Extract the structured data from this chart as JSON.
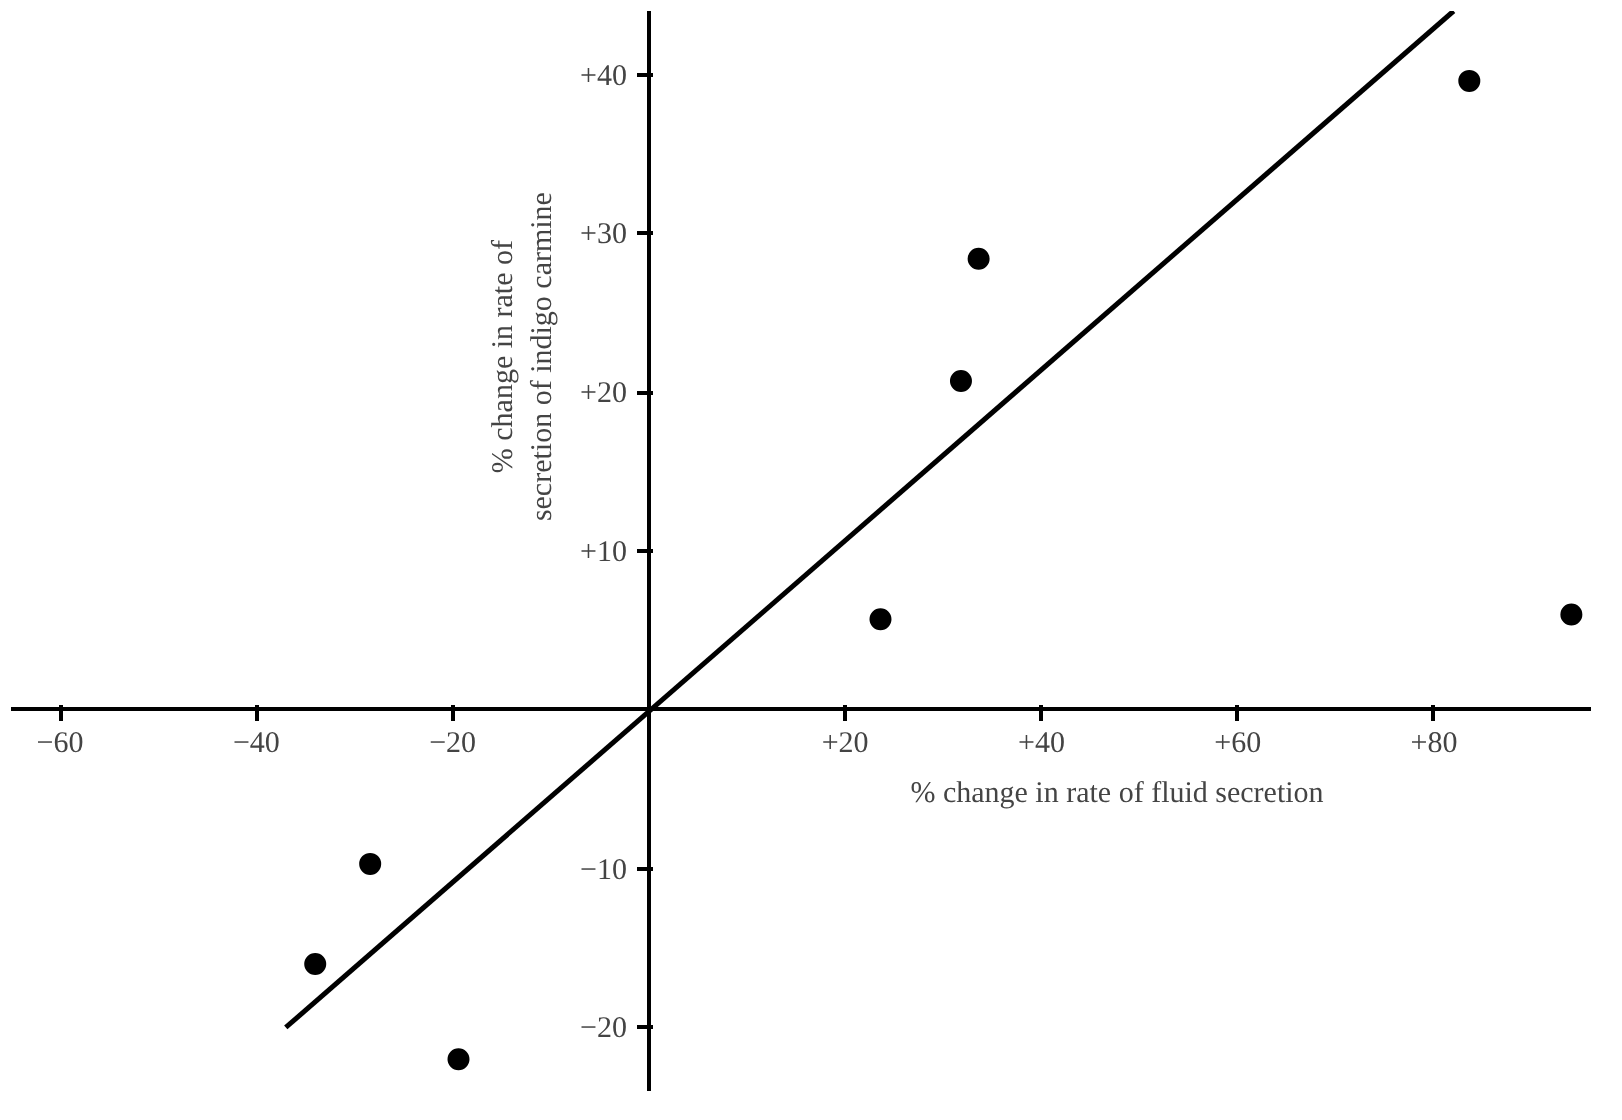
{
  "chart_data": {
    "type": "scatter",
    "xlabel": "% change in rate of fluid secretion",
    "ylabel": "% change in rate of\nsecretion of indigo carmine",
    "xlim": [
      -65,
      96
    ],
    "ylim": [
      -24,
      44
    ],
    "xticks": [
      {
        "value": -60,
        "label": "−60"
      },
      {
        "value": -40,
        "label": "−40"
      },
      {
        "value": -20,
        "label": "−20"
      },
      {
        "value": 20,
        "label": "+20"
      },
      {
        "value": 40,
        "label": "+40"
      },
      {
        "value": 60,
        "label": "+60"
      },
      {
        "value": 80,
        "label": "+80"
      }
    ],
    "yticks": [
      {
        "value": -20,
        "label": "−20"
      },
      {
        "value": -10,
        "label": "−10"
      },
      {
        "value": 10,
        "label": "+10"
      },
      {
        "value": 20,
        "label": "+20"
      },
      {
        "value": 30,
        "label": "+30"
      },
      {
        "value": 40,
        "label": "+40"
      }
    ],
    "grid": false,
    "marker": "circle",
    "series": [
      {
        "color": "#000000",
        "x": [
          83.6,
          33.6,
          31.8,
          23.6,
          -28.4,
          -34,
          -19.4,
          94
        ],
        "values": [
          39.6,
          28.4,
          20.7,
          5.7,
          -9.7,
          -16,
          -22,
          6
        ]
      },
      {
        "type": "line",
        "color": "#000000",
        "marker": "none",
        "x": [
          -37,
          82
        ],
        "values": [
          -20,
          44
        ]
      }
    ]
  }
}
